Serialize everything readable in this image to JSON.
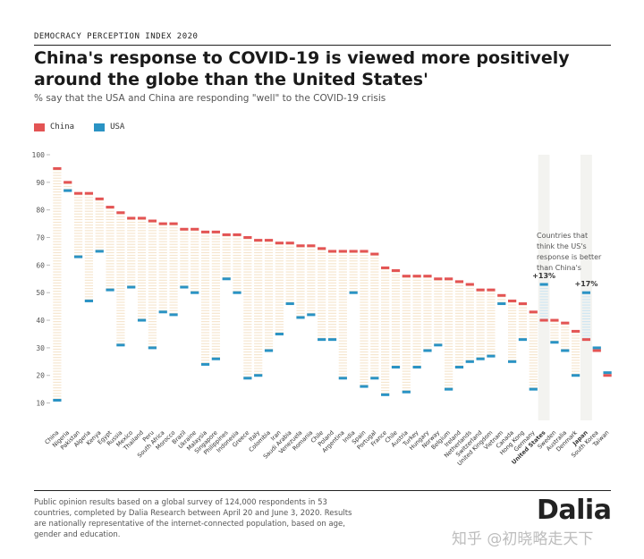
{
  "header": {
    "kicker": "DEMOCRACY PERCEPTION INDEX 2020",
    "title": "China's response to COVID-19 is viewed more positively around the globe than the United States'",
    "subtitle": "% say that the USA and China are responding \"well\" to the COVID-19 crisis"
  },
  "legend": {
    "china_label": "China",
    "usa_label": "USA"
  },
  "colors": {
    "china": "#e35454",
    "usa": "#2a93c4",
    "band_china": "#f6e6cf",
    "band_usa": "#cfe6f2",
    "highlight": "#f3f3f0"
  },
  "chart_data": {
    "type": "dot-range",
    "ylim": [
      5,
      100
    ],
    "yticks": [
      10,
      20,
      30,
      40,
      50,
      60,
      70,
      80,
      90,
      100
    ],
    "categories": [
      "China",
      "Nigeria",
      "Pakistan",
      "Algeria",
      "Kenya",
      "Egypt",
      "Russia",
      "Mexico",
      "Thailand",
      "Peru",
      "South Africa",
      "Morocco",
      "Brazil",
      "Ukraine",
      "Malaysia",
      "Singapore",
      "Philippines",
      "Indonesia",
      "Greece",
      "Italy",
      "Colombia",
      "Iran",
      "Saudi Arabia",
      "Venezuela",
      "Romania",
      "Chile",
      "Poland",
      "Argentina",
      "India",
      "Spain",
      "Portugal",
      "France",
      "Chile",
      "Austria",
      "Turkey",
      "Hungary",
      "Norway",
      "Belgium",
      "Ireland",
      "Netherlands",
      "Switzerland",
      "United Kingdom",
      "Vietnam",
      "Canada",
      "Hong Kong",
      "Germany",
      "United States",
      "Sweden",
      "Australia",
      "Denmark",
      "Japan",
      "South Korea",
      "Taiwan"
    ],
    "series": [
      {
        "name": "China",
        "values": [
          95,
          90,
          86,
          86,
          84,
          81,
          79,
          77,
          77,
          76,
          75,
          75,
          73,
          73,
          72,
          72,
          71,
          71,
          70,
          69,
          69,
          68,
          68,
          67,
          67,
          66,
          65,
          65,
          65,
          65,
          64,
          59,
          58,
          56,
          56,
          56,
          55,
          55,
          54,
          53,
          51,
          51,
          49,
          47,
          46,
          43,
          40,
          40,
          39,
          36,
          33,
          29,
          20
        ]
      },
      {
        "name": "USA",
        "values": [
          11,
          87,
          63,
          47,
          65,
          51,
          31,
          52,
          40,
          30,
          43,
          42,
          52,
          50,
          24,
          26,
          55,
          50,
          19,
          20,
          29,
          35,
          46,
          41,
          42,
          33,
          33,
          19,
          50,
          16,
          19,
          13,
          23,
          14,
          23,
          29,
          31,
          15,
          23,
          25,
          26,
          27,
          46,
          25,
          33,
          15,
          53,
          32,
          29,
          20,
          50,
          30,
          21
        ]
      }
    ],
    "highlighted": [
      {
        "category_index": 46,
        "label": "+13%"
      },
      {
        "category_index": 50,
        "label": "+17%"
      }
    ],
    "annotation": "Countries that think the US's response is better than China's"
  },
  "footer": {
    "note": "Public opinion results based on a global survey of 124,000 respondents in 53 countries, completed by Dalia Research between April 20 and June 3, 2020. Results are nationally representative of the internet-connected population, based on age, gender and education.",
    "logo": "Dalia",
    "watermark": "知乎 @初晓略走天下"
  }
}
